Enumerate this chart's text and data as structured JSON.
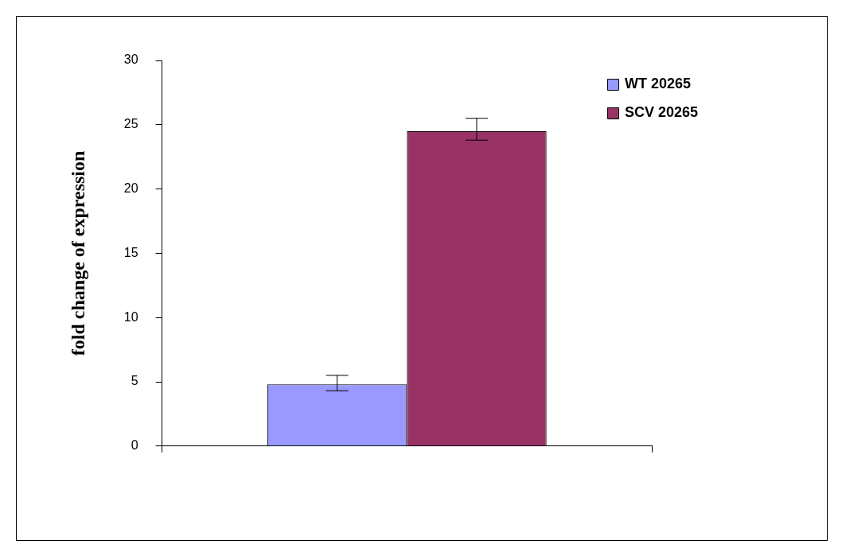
{
  "chart_data": {
    "type": "bar",
    "ylabel": "fold change of expression",
    "categories": [
      null
    ],
    "series": [
      {
        "name": "WT 20265",
        "color": "#9999ff",
        "values": [
          4.8
        ],
        "errors": [
          [
            4.3,
            5.5
          ]
        ]
      },
      {
        "name": "SCV 20265",
        "color": "#993366",
        "values": [
          24.5
        ],
        "errors": [
          [
            23.8,
            25.5
          ]
        ]
      }
    ],
    "ylim": [
      0,
      30
    ],
    "yticks": [
      0,
      5,
      10,
      15,
      20,
      25,
      30
    ],
    "grid": false,
    "legend": "top right"
  }
}
